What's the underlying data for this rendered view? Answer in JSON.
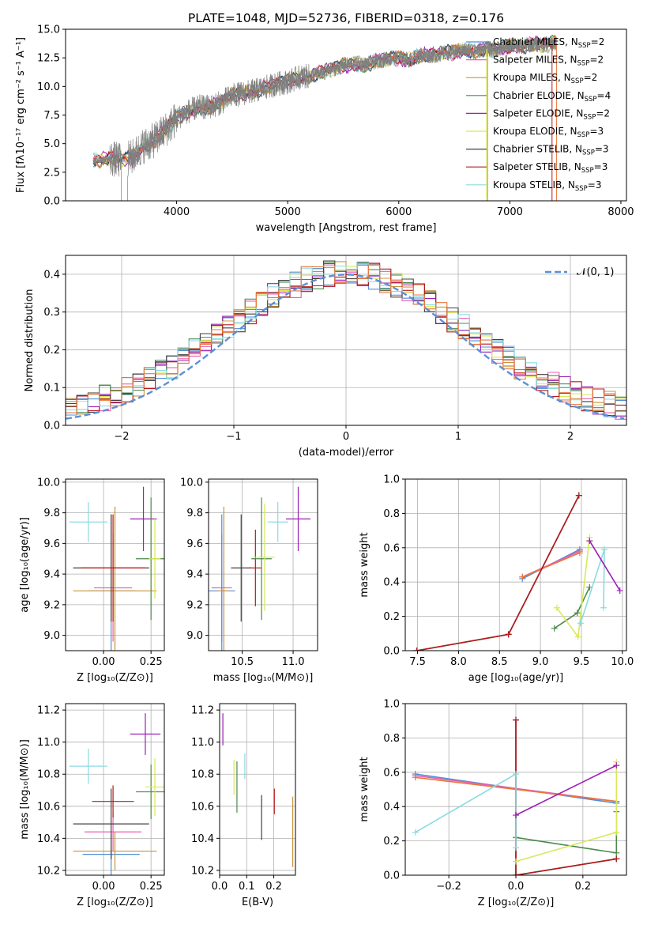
{
  "colors": {
    "chabrier_miles": "#4e8fd6",
    "salpeter_miles": "#e85fb4",
    "kroupa_miles": "#c8923c",
    "chabrier_elodie": "#4c8a4c",
    "salpeter_elodie": "#9b1fb5",
    "kroupa_elodie": "#d8e85a",
    "chabrier_stelib": "#404040",
    "salpeter_stelib": "#b51a1a",
    "kroupa_stelib": "#8adbe0",
    "data_gray": "#808080",
    "orange_overlay": "#e8773c",
    "gauss": "#5b8fd8"
  },
  "chart_data": [
    {
      "id": "spectrum",
      "type": "line",
      "title": "PLATE=1048, MJD=52736, FIBERID=0318, z=0.176",
      "xlabel": "wavelength [Angstrom, rest frame]",
      "ylabel": "Flux [fλ10⁻¹⁷ erg cm⁻² s⁻¹ A⁻¹]",
      "xlim": [
        3000,
        8050
      ],
      "ylim": [
        0,
        15
      ],
      "xticks": [
        "4000",
        "5000",
        "6000",
        "7000",
        "8000"
      ],
      "yticks": [
        "0.0",
        "2.5",
        "5.0",
        "7.5",
        "10.0",
        "12.5",
        "15.0"
      ],
      "legend_position": "top-right",
      "legend": [
        {
          "base": "Chabrier MILES, N",
          "sub": "SSP",
          "tail": "=2",
          "color": "#4e8fd6"
        },
        {
          "base": "Salpeter MILES, N",
          "sub": "SSP",
          "tail": "=2",
          "color": "#e85fb4"
        },
        {
          "base": "Kroupa MILES, N",
          "sub": "SSP",
          "tail": "=2",
          "color": "#c8923c"
        },
        {
          "base": "Chabrier ELODIE, N",
          "sub": "SSP",
          "tail": "=4",
          "color": "#4c8a4c"
        },
        {
          "base": "Salpeter ELODIE, N",
          "sub": "SSP",
          "tail": "=2",
          "color": "#9b1fb5"
        },
        {
          "base": "Kroupa ELODIE, N",
          "sub": "SSP",
          "tail": "=3",
          "color": "#d8e85a"
        },
        {
          "base": "Chabrier STELIB, N",
          "sub": "SSP",
          "tail": "=3",
          "color": "#404040"
        },
        {
          "base": "Salpeter STELIB, N",
          "sub": "SSP",
          "tail": "=3",
          "color": "#b51a1a"
        },
        {
          "base": "Kroupa STELIB, N",
          "sub": "SSP",
          "tail": "=3",
          "color": "#8adbe0"
        }
      ],
      "continuum": {
        "x": [
          3250,
          3400,
          3500,
          3600,
          3700,
          3800,
          3900,
          4000,
          4100,
          4200,
          4300,
          4400,
          4500,
          4600,
          4700,
          4800,
          4900,
          5000,
          5100,
          5200,
          5300,
          5400,
          5500,
          5600,
          5700,
          5800,
          5900,
          6000,
          6100,
          6200,
          6300,
          6400,
          6500,
          6600,
          6700,
          6800,
          6900,
          7000,
          7100,
          7200,
          7300,
          7400
        ],
        "y": [
          3.5,
          3.7,
          3.5,
          3.8,
          4.8,
          5.3,
          6.2,
          7.2,
          7.8,
          8.2,
          8.2,
          8.6,
          9.2,
          9.4,
          9.6,
          9.9,
          10.2,
          10.4,
          10.8,
          10.9,
          11.2,
          11.5,
          11.8,
          12.0,
          11.9,
          12.2,
          12.4,
          12.5,
          12.3,
          12.8,
          12.7,
          12.9,
          13.0,
          13.2,
          13.1,
          13.3,
          13.2,
          13.6,
          13.5,
          13.7,
          13.6,
          13.8
        ]
      }
    },
    {
      "id": "residuals",
      "type": "line",
      "xlabel": "(data-model)/error",
      "ylabel": "Normed distribution",
      "xlim": [
        -2.5,
        2.5
      ],
      "ylim": [
        0,
        0.45
      ],
      "xticks": [
        "−2",
        "−1",
        "0",
        "1",
        "2"
      ],
      "yticks": [
        "0.0",
        "0.1",
        "0.2",
        "0.3",
        "0.4"
      ],
      "grid": true,
      "legend_position": "top-right",
      "legend": [
        {
          "label": "𝒩(0, 1)",
          "color": "#5b8fd8"
        }
      ]
    },
    {
      "id": "age_vs_z",
      "type": "scatter",
      "xlabel": "Z [log₁₀(Z/Z⊙)]",
      "ylabel": "age  [log₁₀(age/yr)]",
      "xlim": [
        -0.2,
        0.32
      ],
      "ylim": [
        8.9,
        10.02
      ],
      "xticks": [
        "0.00",
        "0.25"
      ],
      "yticks": [
        "9.0",
        "9.2",
        "9.4",
        "9.6",
        "9.8",
        "10.0"
      ],
      "grid": true,
      "points": [
        {
          "x": -0.08,
          "y": 9.74,
          "xerr": 0.1,
          "yerr": 0.13,
          "color": "#8adbe0"
        },
        {
          "x": 0.05,
          "y": 9.31,
          "xerr": 0.1,
          "yerr": 0.35,
          "color": "#e85fb4"
        },
        {
          "x": 0.04,
          "y": 9.29,
          "xerr": 0.12,
          "yerr": 0.5,
          "color": "#4e8fd6"
        },
        {
          "x": 0.06,
          "y": 9.29,
          "xerr": 0.22,
          "yerr": 0.55,
          "color": "#c8923c"
        },
        {
          "x": 0.04,
          "y": 9.44,
          "xerr": 0.2,
          "yerr": 0.35,
          "color": "#404040"
        },
        {
          "x": 0.05,
          "y": 9.44,
          "xerr": 0.17,
          "yerr": 0.35,
          "color": "#b51a1a"
        },
        {
          "x": 0.21,
          "y": 9.76,
          "xerr": 0.07,
          "yerr": 0.21,
          "color": "#9b1fb5"
        },
        {
          "x": 0.25,
          "y": 9.5,
          "xerr": 0.08,
          "yerr": 0.4,
          "color": "#4c8a4c"
        },
        {
          "x": 0.27,
          "y": 9.5,
          "xerr": 0.03,
          "yerr": 0.26,
          "color": "#d8e85a"
        }
      ]
    },
    {
      "id": "age_vs_mass",
      "type": "scatter",
      "xlabel": "mass [log₁₀(M/M⊙)]",
      "xlim": [
        10.17,
        11.24
      ],
      "ylim": [
        8.9,
        10.02
      ],
      "xticks": [
        "10.5",
        "11.0"
      ],
      "yticks": [
        "9.0",
        "9.2",
        "9.4",
        "9.6",
        "9.8",
        "10.0"
      ],
      "grid": true,
      "points": [
        {
          "x": 10.3,
          "y": 9.31,
          "xerr": 0.1,
          "yerr": 0.35,
          "color": "#e85fb4"
        },
        {
          "x": 10.3,
          "y": 9.29,
          "xerr": 0.13,
          "yerr": 0.5,
          "color": "#4e8fd6"
        },
        {
          "x": 10.32,
          "y": 9.29,
          "xerr": 0.06,
          "yerr": 0.55,
          "color": "#c8923c"
        },
        {
          "x": 10.49,
          "y": 9.44,
          "xerr": 0.1,
          "yerr": 0.35,
          "color": "#404040"
        },
        {
          "x": 10.63,
          "y": 9.44,
          "xerr": 0.06,
          "yerr": 0.25,
          "color": "#b51a1a"
        },
        {
          "x": 10.69,
          "y": 9.5,
          "xerr": 0.1,
          "yerr": 0.4,
          "color": "#4c8a4c"
        },
        {
          "x": 10.72,
          "y": 9.51,
          "xerr": 0.1,
          "yerr": 0.35,
          "color": "#d8e85a"
        },
        {
          "x": 10.85,
          "y": 9.74,
          "xerr": 0.1,
          "yerr": 0.13,
          "color": "#8adbe0"
        },
        {
          "x": 11.05,
          "y": 9.76,
          "xerr": 0.12,
          "yerr": 0.21,
          "color": "#9b1fb5"
        }
      ]
    },
    {
      "id": "weight_vs_age",
      "type": "line",
      "xlabel": "age  [log₁₀(age/yr)]",
      "ylabel": "mass weight",
      "xlim": [
        7.35,
        10.05
      ],
      "ylim": [
        0,
        1.0
      ],
      "xticks": [
        "7.5",
        "8.0",
        "8.5",
        "9.0",
        "9.5",
        "10.0"
      ],
      "yticks": [
        "0.0",
        "0.2",
        "0.4",
        "0.6",
        "0.8",
        "1.0"
      ],
      "grid": true,
      "series": [
        {
          "color": "#4e8fd6",
          "x": [
            8.78,
            9.48
          ],
          "y": [
            0.42,
            0.59
          ]
        },
        {
          "color": "#e85fb4",
          "x": [
            8.78,
            9.48
          ],
          "y": [
            0.43,
            0.58
          ]
        },
        {
          "color": "#e8773c",
          "x": [
            8.78,
            9.48
          ],
          "y": [
            0.43,
            0.57
          ]
        },
        {
          "color": "#404040",
          "x": [
            7.49,
            8.61,
            9.47
          ],
          "y": [
            0.0,
            0.095,
            0.905
          ]
        },
        {
          "color": "#b51a1a",
          "x": [
            7.49,
            8.61,
            9.47
          ],
          "y": [
            0.0,
            0.095,
            0.905
          ]
        },
        {
          "color": "#4c8a4c",
          "x": [
            9.17,
            9.45,
            9.6
          ],
          "y": [
            0.13,
            0.22,
            0.37
          ]
        },
        {
          "color": "#d8e85a",
          "x": [
            9.2,
            9.46,
            9.6
          ],
          "y": [
            0.25,
            0.08,
            0.66
          ]
        },
        {
          "color": "#8adbe0",
          "x": [
            9.49,
            9.78,
            9.77
          ],
          "y": [
            0.16,
            0.59,
            0.25
          ]
        },
        {
          "color": "#9b1fb5",
          "x": [
            9.6,
            9.97
          ],
          "y": [
            0.64,
            0.35
          ]
        }
      ]
    },
    {
      "id": "mass_vs_z",
      "type": "scatter",
      "xlabel": "Z [log₁₀(Z/Z⊙)]",
      "ylabel": "mass [log₁₀(M/M⊙)]",
      "xlim": [
        -0.2,
        0.32
      ],
      "ylim": [
        10.17,
        11.24
      ],
      "xticks": [
        "0.00",
        "0.25"
      ],
      "yticks": [
        "10.2",
        "10.4",
        "10.6",
        "10.8",
        "11.0",
        "11.2"
      ],
      "grid": true,
      "points": [
        {
          "x": -0.08,
          "y": 10.85,
          "xerr": 0.1,
          "yerr": 0.11,
          "color": "#8adbe0"
        },
        {
          "x": 0.05,
          "y": 10.44,
          "xerr": 0.15,
          "yerr": 0.12,
          "color": "#e85fb4"
        },
        {
          "x": 0.04,
          "y": 10.3,
          "xerr": 0.15,
          "yerr": 0.13,
          "color": "#4e8fd6"
        },
        {
          "x": 0.06,
          "y": 10.32,
          "xerr": 0.22,
          "yerr": 0.12,
          "color": "#c8923c"
        },
        {
          "x": 0.04,
          "y": 10.49,
          "xerr": 0.2,
          "yerr": 0.22,
          "color": "#404040"
        },
        {
          "x": 0.05,
          "y": 10.63,
          "xerr": 0.11,
          "yerr": 0.1,
          "color": "#b51a1a"
        },
        {
          "x": 0.22,
          "y": 11.05,
          "xerr": 0.08,
          "yerr": 0.13,
          "color": "#9b1fb5"
        },
        {
          "x": 0.25,
          "y": 10.69,
          "xerr": 0.08,
          "yerr": 0.17,
          "color": "#4c8a4c"
        },
        {
          "x": 0.27,
          "y": 10.72,
          "xerr": 0.05,
          "yerr": 0.18,
          "color": "#d8e85a"
        }
      ]
    },
    {
      "id": "mass_vs_ebv",
      "type": "scatter",
      "xlabel": "E(B-V)",
      "xlim": [
        0.0,
        0.28
      ],
      "ylim": [
        10.17,
        11.24
      ],
      "xticks": [
        "0.0",
        "0.1",
        "0.2"
      ],
      "yticks": [
        "10.2",
        "10.4",
        "10.6",
        "10.8",
        "11.0",
        "11.2"
      ],
      "grid": true,
      "points": [
        {
          "x": 0.012,
          "y": 11.08,
          "xerr": 0.0,
          "yerr": 0.1,
          "color": "#9b1fb5"
        },
        {
          "x": 0.053,
          "y": 10.78,
          "xerr": 0.0,
          "yerr": 0.11,
          "color": "#d8e85a"
        },
        {
          "x": 0.064,
          "y": 10.72,
          "xerr": 0.0,
          "yerr": 0.16,
          "color": "#4c8a4c"
        },
        {
          "x": 0.093,
          "y": 10.85,
          "xerr": 0.0,
          "yerr": 0.08,
          "color": "#8adbe0"
        },
        {
          "x": 0.155,
          "y": 10.53,
          "xerr": 0.0,
          "yerr": 0.14,
          "color": "#404040"
        },
        {
          "x": 0.202,
          "y": 10.63,
          "xerr": 0.0,
          "yerr": 0.08,
          "color": "#b51a1a"
        },
        {
          "x": 0.27,
          "y": 10.44,
          "xerr": 0.0,
          "yerr": 0.22,
          "color": "#c8923c"
        }
      ]
    },
    {
      "id": "weight_vs_z",
      "type": "line",
      "xlabel": "Z [log₁₀(Z/Z⊙)]",
      "ylabel": "mass weight",
      "xlim": [
        -0.33,
        0.33
      ],
      "ylim": [
        0,
        1.0
      ],
      "xticks": [
        "−0.2",
        "0.0",
        "0.2"
      ],
      "yticks": [
        "0.0",
        "0.2",
        "0.4",
        "0.6",
        "0.8",
        "1.0"
      ],
      "grid": true,
      "series": [
        {
          "color": "#4e8fd6",
          "x": [
            -0.3,
            0.3
          ],
          "y": [
            0.59,
            0.42
          ]
        },
        {
          "color": "#e85fb4",
          "x": [
            -0.3,
            0.3
          ],
          "y": [
            0.58,
            0.43
          ]
        },
        {
          "color": "#e8773c",
          "x": [
            -0.3,
            0.3
          ],
          "y": [
            0.57,
            0.43
          ]
        },
        {
          "color": "#404040",
          "x": [
            0.0,
            0.0,
            0.3
          ],
          "y": [
            0.905,
            0.0,
            0.095
          ]
        },
        {
          "color": "#b51a1a",
          "x": [
            0.0,
            0.0,
            0.3
          ],
          "y": [
            0.905,
            0.0,
            0.095
          ]
        },
        {
          "color": "#4c8a4c",
          "x": [
            0.0,
            0.3,
            0.3
          ],
          "y": [
            0.22,
            0.13,
            0.37
          ]
        },
        {
          "color": "#d8e85a",
          "x": [
            0.0,
            0.3,
            0.3
          ],
          "y": [
            0.08,
            0.25,
            0.66
          ]
        },
        {
          "color": "#8adbe0",
          "x": [
            -0.3,
            0.0,
            0.0
          ],
          "y": [
            0.25,
            0.59,
            0.16
          ]
        },
        {
          "color": "#9b1fb5",
          "x": [
            0.0,
            0.3
          ],
          "y": [
            0.35,
            0.64
          ]
        }
      ]
    }
  ]
}
